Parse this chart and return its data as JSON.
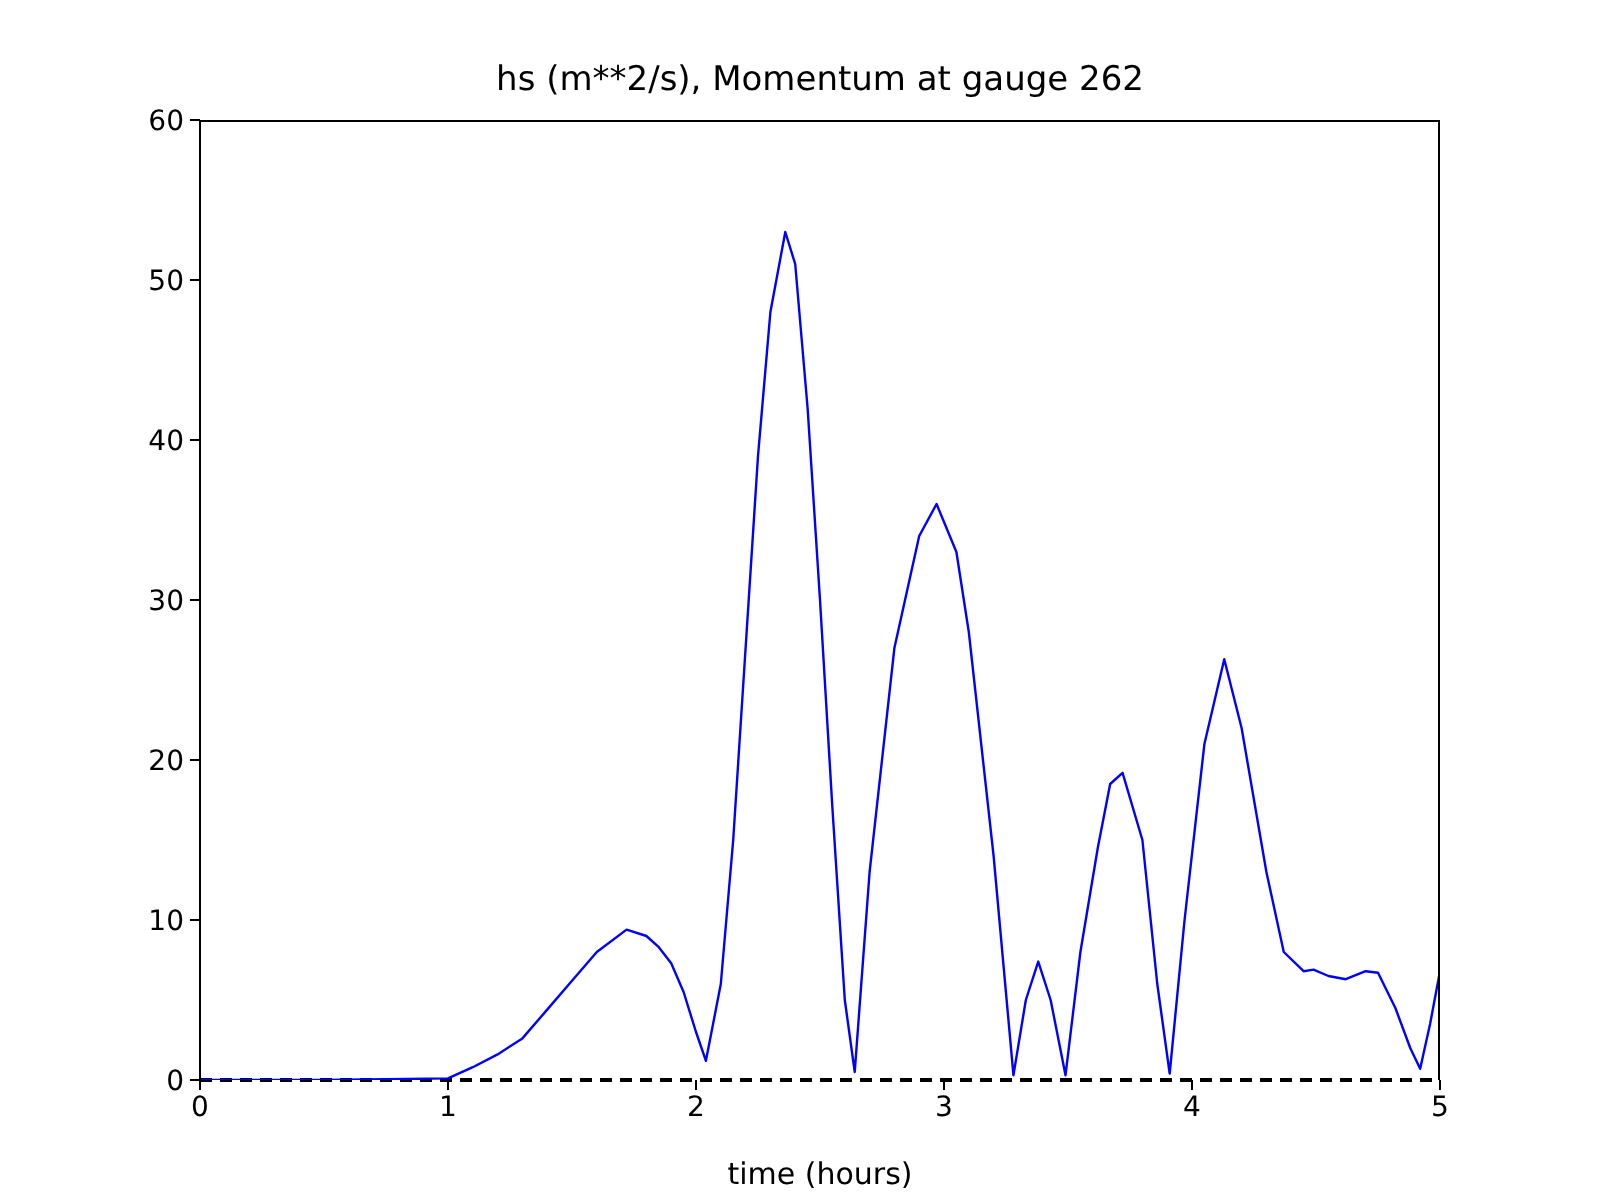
{
  "chart_data": {
    "type": "line",
    "title": "hs (m**2/s), Momentum at gauge 262",
    "xlabel": "time (hours)",
    "x": [
      0,
      0.5,
      1.0,
      1.1,
      1.2,
      1.3,
      1.4,
      1.5,
      1.6,
      1.72,
      1.8,
      1.85,
      1.9,
      1.95,
      2.0,
      2.04,
      2.1,
      2.15,
      2.2,
      2.25,
      2.3,
      2.36,
      2.4,
      2.45,
      2.5,
      2.55,
      2.6,
      2.64,
      2.7,
      2.8,
      2.9,
      2.97,
      3.05,
      3.1,
      3.2,
      3.28,
      3.33,
      3.38,
      3.43,
      3.49,
      3.55,
      3.62,
      3.67,
      3.72,
      3.8,
      3.86,
      3.91,
      3.97,
      4.05,
      4.13,
      4.2,
      4.3,
      4.37,
      4.45,
      4.49,
      4.55,
      4.62,
      4.7,
      4.75,
      4.82,
      4.88,
      4.92,
      4.96,
      5.0
    ],
    "series": [
      {
        "color": "#0000ff",
        "values": [
          0,
          0,
          0.1,
          0.8,
          1.6,
          2.6,
          4.4,
          6.2,
          8.0,
          9.4,
          9.0,
          8.3,
          7.3,
          5.5,
          3.0,
          1.2,
          6,
          15,
          27,
          39,
          48,
          53,
          51,
          42,
          30,
          17,
          5,
          0.5,
          13,
          27,
          34,
          36,
          33,
          28,
          14,
          0.3,
          5,
          7.4,
          5,
          0.3,
          8,
          14.5,
          18.5,
          19.2,
          15,
          6,
          0.4,
          10,
          21,
          26.3,
          22,
          13,
          8,
          6.8,
          6.9,
          6.5,
          6.3,
          6.8,
          6.7,
          4.5,
          2,
          0.7,
          3.5,
          6.8
        ]
      }
    ],
    "xlim": [
      0,
      5
    ],
    "xticks": [
      0,
      1,
      2,
      3,
      4,
      5
    ],
    "ylim": [
      0,
      60
    ],
    "yticks": [
      0,
      10,
      20,
      30,
      40,
      50,
      60
    ],
    "grid": false,
    "legend": false,
    "marker": "none",
    "line_style": "solid",
    "ref_lines": [
      {
        "axis": "y",
        "value": 0,
        "color": "#000000",
        "line_style": "dashed"
      }
    ]
  }
}
